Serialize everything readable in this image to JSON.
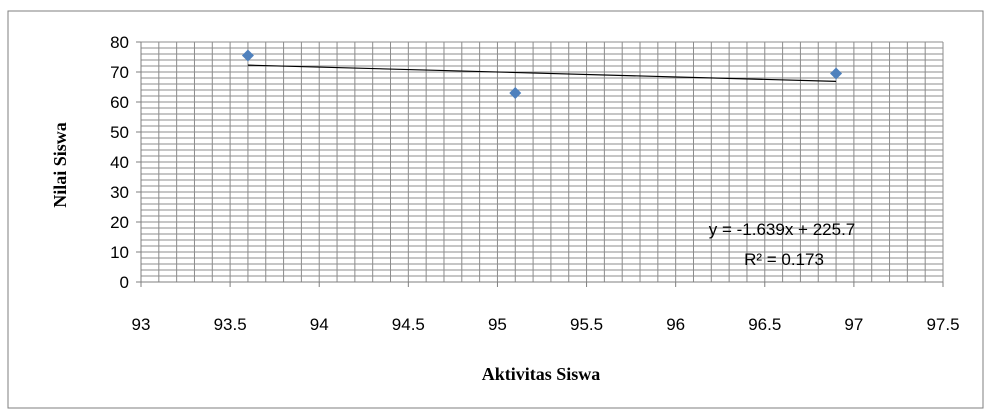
{
  "chart_data": {
    "type": "scatter",
    "title": "",
    "xlabel": "Aktivitas Siswa",
    "ylabel": "Nilai Siswa",
    "xlim": [
      93,
      97.5
    ],
    "ylim": [
      0,
      80
    ],
    "x_ticks": [
      "93",
      "93.5",
      "94",
      "94.5",
      "95",
      "95.5",
      "96",
      "96.5",
      "97",
      "97.5"
    ],
    "y_ticks": [
      "0",
      "10",
      "20",
      "30",
      "40",
      "50",
      "60",
      "70",
      "80"
    ],
    "grid": true,
    "legend": "none",
    "series": [
      {
        "color": "#4F81BD",
        "marker": "diamond",
        "x": [
          93.6,
          95.1,
          96.9
        ],
        "y": [
          75.5,
          63,
          69.5
        ]
      }
    ],
    "trendline": {
      "type": "linear",
      "slope": -1.639,
      "intercept": 225.7,
      "x_range": [
        93.6,
        96.9
      ],
      "color": "#000000",
      "equation_label": "y = -1.639x + 225.7",
      "r2_label": "R² = 0.173"
    }
  }
}
